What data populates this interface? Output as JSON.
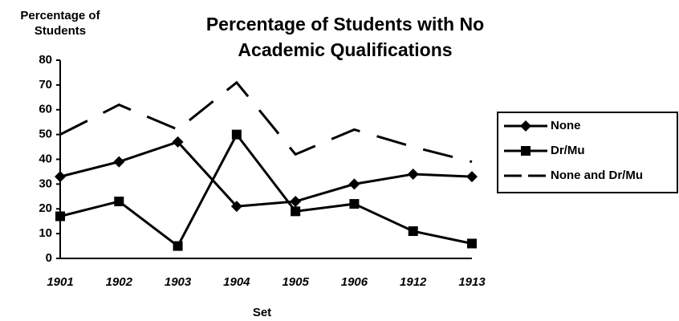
{
  "chart_data": {
    "type": "line",
    "title": "Percentage of Students with No Academic Qualifications",
    "ylabel": "Percentage of Students",
    "xlabel": "Set",
    "categories": [
      "1901",
      "1902",
      "1903",
      "1904",
      "1905",
      "1906",
      "1912",
      "1913"
    ],
    "series": [
      {
        "name": "None",
        "color": "#000000",
        "marker": "diamond",
        "line_style": "solid",
        "values": [
          33,
          39,
          47,
          21,
          23,
          30,
          34,
          33
        ]
      },
      {
        "name": "Dr/Mu",
        "color": "#000000",
        "marker": "square",
        "line_style": "solid",
        "values": [
          17,
          23,
          5,
          50,
          19,
          22,
          11,
          6
        ]
      },
      {
        "name": "None and Dr/Mu",
        "color": "#000000",
        "marker": "none",
        "line_style": "dashed",
        "values": [
          50,
          62,
          52,
          71,
          42,
          52,
          45,
          39
        ]
      }
    ],
    "ylim": [
      0,
      80
    ],
    "yticks": [
      0,
      10,
      20,
      30,
      40,
      50,
      60,
      70,
      80
    ],
    "grid": false,
    "legend": "right"
  }
}
